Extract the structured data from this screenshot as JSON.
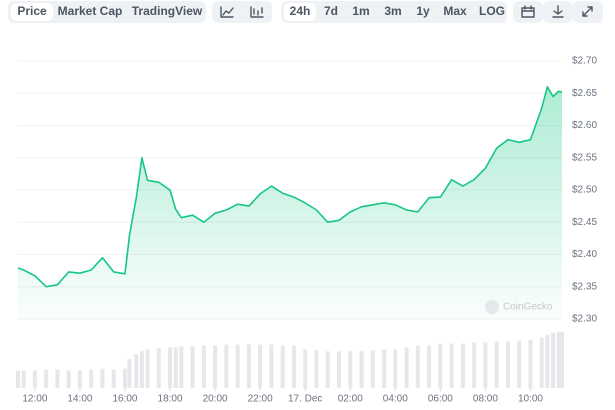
{
  "toolbar": {
    "tabs": [
      "Price",
      "Market Cap",
      "TradingView"
    ],
    "ranges": [
      "24h",
      "7d",
      "1m",
      "3m",
      "1y",
      "Max",
      "LOG"
    ]
  },
  "watermark": "CoinGecko",
  "chart_data": {
    "type": "line",
    "color": "#16c784",
    "volume_color": "#e5e7eb",
    "grid": true,
    "x": [
      11.25,
      11.5,
      12,
      12.5,
      13,
      13.5,
      14,
      14.5,
      15,
      15.5,
      16,
      16.2,
      16.5,
      16.75,
      17,
      17.5,
      18,
      18.25,
      18.5,
      19,
      19.5,
      20,
      20.5,
      21,
      21.5,
      22,
      22.5,
      23,
      23.5,
      24,
      24.5,
      25,
      25.5,
      26,
      26.5,
      27,
      27.5,
      28,
      28.5,
      29,
      29.5,
      30,
      30.5,
      31,
      31.5,
      32,
      32.5,
      33,
      33.5,
      34,
      34.5,
      34.75,
      35,
      35.25,
      35.4
    ],
    "values": [
      2.379,
      2.376,
      2.367,
      2.35,
      2.353,
      2.373,
      2.371,
      2.376,
      2.395,
      2.373,
      2.37,
      2.43,
      2.488,
      2.55,
      2.515,
      2.512,
      2.5,
      2.47,
      2.457,
      2.461,
      2.45,
      2.464,
      2.469,
      2.478,
      2.475,
      2.494,
      2.506,
      2.495,
      2.489,
      2.48,
      2.469,
      2.45,
      2.453,
      2.466,
      2.474,
      2.477,
      2.48,
      2.477,
      2.469,
      2.466,
      2.488,
      2.489,
      2.516,
      2.506,
      2.516,
      2.534,
      2.565,
      2.578,
      2.574,
      2.578,
      2.627,
      2.66,
      2.645,
      2.653,
      2.652
    ],
    "volume": [
      18,
      18,
      18,
      19,
      19,
      18,
      18,
      19,
      20,
      19,
      20,
      30,
      35,
      38,
      40,
      41,
      42,
      42,
      43,
      43,
      44,
      44,
      45,
      45,
      45,
      45,
      45,
      44,
      44,
      40,
      39,
      38,
      38,
      38,
      38,
      39,
      40,
      40,
      42,
      44,
      44,
      46,
      46,
      46,
      47,
      47,
      48,
      48,
      49,
      50,
      52,
      55,
      57,
      58,
      58
    ],
    "vlim": [
      0,
      60
    ],
    "xlim": [
      11.25,
      35.4
    ],
    "xticks": [
      {
        "value": 12,
        "label": "12:00"
      },
      {
        "value": 14,
        "label": "14:00"
      },
      {
        "value": 16,
        "label": "16:00"
      },
      {
        "value": 18,
        "label": "18:00"
      },
      {
        "value": 20,
        "label": "20:00"
      },
      {
        "value": 22,
        "label": "22:00"
      },
      {
        "value": 24,
        "label": "17. Dec"
      },
      {
        "value": 26,
        "label": "02:00"
      },
      {
        "value": 28,
        "label": "04:00"
      },
      {
        "value": 30,
        "label": "06:00"
      },
      {
        "value": 32,
        "label": "08:00"
      },
      {
        "value": 34,
        "label": "10:00"
      }
    ],
    "ylim": [
      2.3,
      2.7
    ],
    "yticks": [
      {
        "value": 2.3,
        "label": "$2.30"
      },
      {
        "value": 2.35,
        "label": "$2.35"
      },
      {
        "value": 2.4,
        "label": "$2.40"
      },
      {
        "value": 2.45,
        "label": "$2.45"
      },
      {
        "value": 2.5,
        "label": "$2.50"
      },
      {
        "value": 2.55,
        "label": "$2.55"
      },
      {
        "value": 2.6,
        "label": "$2.60"
      },
      {
        "value": 2.65,
        "label": "$2.65"
      },
      {
        "value": 2.7,
        "label": "$2.70"
      }
    ]
  }
}
